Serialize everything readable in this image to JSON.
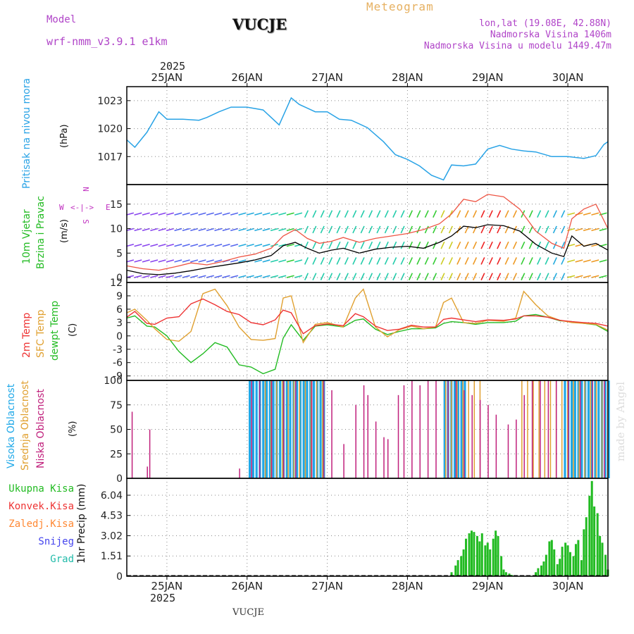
{
  "header": {
    "model_label": "Model",
    "model_name": "wrf-nmm_v3.9.1 e1km",
    "station": "VUCJE",
    "meteogram": "Meteogram",
    "lonlat": "lon,lat (19.08E, 42.88N)",
    "elevation": "Nadmorska Visina 1406m",
    "model_elevation": "Nadmorska Visina u modelu 1449.47m",
    "year_top": "2025",
    "year_bottom": "2025",
    "footer_station": "VUCJE",
    "watermark": "made by Angel"
  },
  "colors": {
    "pressure": "#29a3e6",
    "wind_label": "#22bb22",
    "t2m": "#ee3333",
    "sfc": "#e0a030",
    "dewpt": "#22bb22",
    "cloud_high": "#1ea8e8",
    "cloud_mid": "#e0a030",
    "cloud_low": "#c0207c",
    "precip": "#22bb22",
    "conv": "#ee3333",
    "frz": "#ff8833",
    "snow": "#4444ee",
    "hail": "#22bbaa",
    "direction_legend": "#c030c0"
  },
  "time_axis": {
    "labels": [
      "25JAN",
      "26JAN",
      "27JAN",
      "28JAN",
      "29JAN",
      "30JAN"
    ],
    "start_day": 24.5,
    "end_day": 30.5
  },
  "panels": {
    "pressure": {
      "label1": "Pritisak na nivou mora",
      "unit": "(hPa)"
    },
    "wind": {
      "label1": "10m Vjetar",
      "label2": "Brzina i Pravac",
      "unit": "(m/s)",
      "dir_n": "N",
      "dir_w": "W",
      "dir_e": "E",
      "dir_s": "S"
    },
    "temp": {
      "label1": "2m Temp",
      "label2": "SFC Temp",
      "label3": "dewpt Temp",
      "unit": "(C)"
    },
    "cloud": {
      "label1": "Visoka Oblacnost",
      "label2": "Srednja Oblacnost",
      "label3": "Niska Oblacnost",
      "unit": "(%)"
    },
    "precip": {
      "unit": "1hr Precip (mm)"
    }
  },
  "precip_legend": [
    "Ukupna Kisa",
    "Konvek.Kisa",
    "Zaledj.Kisa",
    "Snijeg",
    "Grad"
  ],
  "chart_data": [
    {
      "type": "line",
      "name": "pressure",
      "ylabel": "Pritisak na nivou mora (hPa)",
      "ylim": [
        1014,
        1024.5
      ],
      "yticks": [
        "1017",
        "1020",
        "1023"
      ],
      "x_days": [
        24.5,
        24.6,
        24.75,
        24.9,
        25.0,
        25.2,
        25.4,
        25.5,
        25.65,
        25.8,
        26.0,
        26.2,
        26.4,
        26.55,
        26.65,
        26.75,
        26.85,
        27.0,
        27.15,
        27.3,
        27.5,
        27.7,
        27.85,
        28.0,
        28.15,
        28.3,
        28.45,
        28.55,
        28.7,
        28.85,
        29.0,
        29.15,
        29.3,
        29.45,
        29.6,
        29.8,
        30.0,
        30.2,
        30.35,
        30.45,
        30.5
      ],
      "values": [
        1018.8,
        1018.0,
        1019.6,
        1021.8,
        1021.0,
        1021.0,
        1020.9,
        1021.2,
        1021.8,
        1022.3,
        1022.3,
        1022.0,
        1020.4,
        1023.3,
        1022.6,
        1022.2,
        1021.8,
        1021.8,
        1021.0,
        1020.9,
        1020.1,
        1018.6,
        1017.2,
        1016.7,
        1016.0,
        1015.0,
        1014.5,
        1016.1,
        1016.0,
        1016.2,
        1017.8,
        1018.2,
        1017.8,
        1017.6,
        1017.5,
        1017.0,
        1017.0,
        1016.8,
        1017.1,
        1018.3,
        1018.6
      ]
    },
    {
      "type": "line",
      "name": "wind",
      "ylabel": "10m Vjetar Brzina i Pravac (m/s)",
      "ylim": [
        -1,
        19
      ],
      "yticks": [
        "0",
        "5",
        "10",
        "15"
      ],
      "x_days": [
        24.5,
        24.7,
        24.9,
        25.1,
        25.3,
        25.5,
        25.7,
        25.9,
        26.1,
        26.3,
        26.45,
        26.6,
        26.75,
        26.9,
        27.05,
        27.2,
        27.4,
        27.6,
        27.8,
        28.0,
        28.2,
        28.4,
        28.55,
        28.7,
        28.85,
        29.0,
        29.2,
        29.4,
        29.6,
        29.8,
        29.95,
        30.05,
        30.2,
        30.35,
        30.5
      ],
      "series": [
        {
          "values": [
            1.5,
            0.8,
            0.6,
            0.9,
            1.4,
            2.0,
            2.5,
            3.0,
            3.6,
            4.5,
            6.5,
            7.2,
            6.0,
            5.0,
            5.6,
            6.0,
            5.0,
            5.8,
            6.2,
            6.4,
            6.0,
            7.2,
            8.5,
            10.5,
            10.2,
            10.8,
            10.6,
            9.5,
            6.8,
            5.0,
            4.3,
            8.5,
            6.4,
            7.0,
            5.6
          ]
        },
        {
          "values": [
            2.4,
            1.8,
            1.5,
            2.2,
            3.0,
            2.6,
            3.3,
            4.2,
            4.8,
            6.0,
            8.5,
            9.8,
            8.0,
            7.0,
            7.4,
            8.2,
            7.2,
            8.0,
            8.5,
            9.0,
            9.8,
            11.0,
            13.0,
            16.0,
            15.5,
            17.0,
            16.5,
            14.0,
            9.5,
            7.0,
            6.0,
            12.0,
            14.0,
            15.0,
            10.0
          ]
        }
      ]
    },
    {
      "type": "line",
      "name": "temperature",
      "ylabel": "Temp (C)",
      "ylim": [
        -10,
        12
      ],
      "yticks": [
        "-9",
        "-6",
        "-3",
        "0",
        "3",
        "6",
        "9",
        "12"
      ],
      "x_days": [
        24.5,
        24.6,
        24.75,
        24.85,
        25.0,
        25.15,
        25.3,
        25.45,
        25.6,
        25.75,
        25.9,
        26.05,
        26.2,
        26.35,
        26.45,
        26.55,
        26.7,
        26.85,
        27.0,
        27.2,
        27.35,
        27.45,
        27.6,
        27.75,
        27.9,
        28.05,
        28.2,
        28.35,
        28.45,
        28.55,
        28.7,
        28.85,
        29.0,
        29.2,
        29.35,
        29.45,
        29.6,
        29.75,
        29.9,
        30.05,
        30.2,
        30.35,
        30.5
      ],
      "series": [
        {
          "name": "2m Temp",
          "values": [
            4.2,
            5.5,
            2.8,
            2.6,
            4.0,
            4.3,
            7.2,
            8.3,
            7.0,
            5.5,
            4.8,
            3.0,
            2.5,
            3.6,
            5.8,
            5.2,
            0.5,
            2.3,
            2.7,
            2.3,
            5.0,
            4.3,
            2.2,
            1.2,
            1.5,
            2.4,
            2.0,
            2.0,
            3.7,
            4.0,
            3.6,
            3.2,
            3.6,
            3.5,
            3.8,
            4.5,
            4.5,
            4.2,
            3.5,
            3.2,
            3.0,
            2.8,
            2.2
          ]
        },
        {
          "name": "SFC Temp",
          "values": [
            5.2,
            6.0,
            3.5,
            1.6,
            -0.8,
            -1.2,
            1.0,
            9.5,
            10.5,
            6.8,
            2.0,
            -0.8,
            -1.0,
            -0.6,
            8.5,
            9.0,
            -1.5,
            2.6,
            3.0,
            2.0,
            8.5,
            10.5,
            2.0,
            -0.2,
            1.4,
            2.2,
            1.6,
            2.0,
            7.5,
            8.5,
            3.0,
            2.8,
            3.5,
            3.3,
            4.0,
            10.0,
            7.0,
            4.5,
            3.5,
            3.0,
            2.8,
            2.6,
            1.3
          ]
        },
        {
          "name": "dewpt Temp",
          "values": [
            4.0,
            4.5,
            2.2,
            2.0,
            0.0,
            -3.5,
            -6.0,
            -4.0,
            -1.5,
            -2.5,
            -6.5,
            -7.0,
            -8.5,
            -7.5,
            -0.5,
            2.5,
            -1.0,
            2.2,
            2.5,
            2.0,
            3.5,
            3.8,
            1.5,
            0.3,
            1.0,
            1.6,
            1.6,
            1.8,
            2.8,
            3.2,
            3.0,
            2.6,
            3.0,
            3.0,
            3.3,
            4.5,
            4.8,
            4.2,
            3.4,
            3.2,
            2.8,
            2.5,
            1.0
          ]
        }
      ]
    },
    {
      "type": "bar",
      "name": "cloud",
      "ylabel": "Oblacnost (%)",
      "ylim": [
        0,
        100
      ],
      "yticks": [
        "0",
        "25",
        "50",
        "75",
        "100"
      ],
      "high_blocks": [
        [
          26.02,
          26.95
        ],
        [
          28.45,
          28.73
        ],
        [
          29.95,
          30.5
        ]
      ],
      "mid_blocks": [
        [
          26.2,
          26.95
        ],
        [
          28.45,
          28.9
        ],
        [
          29.4,
          30.5
        ]
      ],
      "low_bars": [
        [
          24.56,
          68
        ],
        [
          24.75,
          12
        ],
        [
          24.78,
          50
        ],
        [
          25.9,
          10
        ],
        [
          26.05,
          100
        ],
        [
          26.15,
          100
        ],
        [
          26.3,
          100
        ],
        [
          26.45,
          100
        ],
        [
          26.6,
          100
        ],
        [
          26.8,
          100
        ],
        [
          26.95,
          100
        ],
        [
          27.05,
          90
        ],
        [
          27.2,
          35
        ],
        [
          27.35,
          75
        ],
        [
          27.45,
          95
        ],
        [
          27.5,
          85
        ],
        [
          27.6,
          58
        ],
        [
          27.7,
          42
        ],
        [
          27.75,
          40
        ],
        [
          27.88,
          85
        ],
        [
          27.95,
          95
        ],
        [
          28.05,
          100
        ],
        [
          28.15,
          95
        ],
        [
          28.25,
          100
        ],
        [
          28.35,
          100
        ],
        [
          28.5,
          100
        ],
        [
          28.6,
          100
        ],
        [
          28.7,
          90
        ],
        [
          28.8,
          85
        ],
        [
          28.9,
          80
        ],
        [
          29.0,
          75
        ],
        [
          29.1,
          65
        ],
        [
          29.25,
          55
        ],
        [
          29.35,
          60
        ],
        [
          29.45,
          85
        ],
        [
          29.55,
          100
        ],
        [
          29.65,
          100
        ],
        [
          29.75,
          100
        ],
        [
          29.85,
          100
        ],
        [
          30.0,
          100
        ],
        [
          30.15,
          100
        ],
        [
          30.3,
          100
        ],
        [
          30.45,
          100
        ]
      ]
    },
    {
      "type": "bar",
      "name": "precip",
      "ylabel": "1hr Precip (mm)",
      "ylim": [
        0,
        7.3
      ],
      "yticks": [
        "0",
        "1.51",
        "3.02",
        "4.53",
        "6.04"
      ],
      "x_days": [
        28.55,
        28.6,
        28.63,
        28.67,
        28.7,
        28.73,
        28.77,
        28.8,
        28.83,
        28.87,
        28.9,
        28.93,
        28.97,
        29.0,
        29.03,
        29.07,
        29.1,
        29.13,
        29.17,
        29.2,
        29.23,
        29.27,
        29.3,
        29.6,
        29.63,
        29.67,
        29.7,
        29.73,
        29.77,
        29.8,
        29.83,
        29.87,
        29.9,
        29.93,
        29.97,
        30.0,
        30.03,
        30.07,
        30.1,
        30.13,
        30.17,
        30.2,
        30.23,
        30.27,
        30.3,
        30.33,
        30.37,
        30.4,
        30.43,
        30.47,
        30.5
      ],
      "values": [
        0.3,
        0.8,
        1.2,
        1.5,
        2.0,
        2.8,
        3.2,
        3.4,
        3.3,
        3.0,
        2.6,
        3.2,
        2.3,
        2.5,
        2.0,
        2.8,
        3.4,
        3.0,
        1.5,
        0.5,
        0.3,
        0.2,
        0.1,
        0.3,
        0.6,
        0.8,
        1.1,
        1.6,
        2.6,
        2.7,
        2.0,
        0.9,
        1.3,
        2.2,
        2.5,
        2.3,
        1.8,
        1.5,
        2.4,
        2.7,
        1.2,
        3.5,
        4.4,
        6.0,
        7.1,
        5.2,
        4.7,
        3.0,
        2.5,
        1.6,
        0.5
      ]
    }
  ]
}
